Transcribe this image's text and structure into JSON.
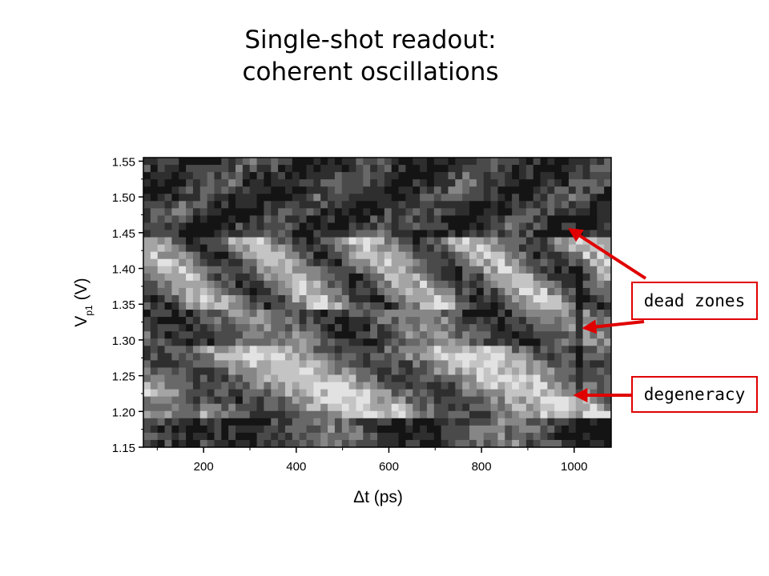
{
  "title": {
    "line1": "Single-shot readout:",
    "line2": "coherent oscillations"
  },
  "annotations": {
    "dead_zones": "dead zones",
    "degeneracy": "degeneracy",
    "arrow_color": "#e00000"
  },
  "chart_data": {
    "type": "heatmap",
    "title": "Single-shot readout: coherent oscillations",
    "xlabel": "Δt (ps)",
    "ylabel_main": "V",
    "ylabel_sub": "p1",
    "ylabel_unit": "(V)",
    "xlim": [
      70,
      1080
    ],
    "ylim": [
      1.15,
      1.555
    ],
    "x_ticks": [
      200,
      400,
      600,
      800,
      1000
    ],
    "y_ticks": [
      1.15,
      1.2,
      1.25,
      1.3,
      1.35,
      1.4,
      1.45,
      1.5,
      1.55
    ],
    "x_tick_labels": [
      "200",
      "400",
      "600",
      "800",
      "1000"
    ],
    "y_tick_labels": [
      "1.15",
      "1.20",
      "1.25",
      "1.30",
      "1.35",
      "1.40",
      "1.45",
      "1.50",
      "1.55"
    ],
    "colormap": "grayscale",
    "grid": false,
    "features": [
      {
        "name": "dead zones",
        "x": 985,
        "y": 1.457
      },
      {
        "name": "dead zones",
        "x": 1012,
        "y": 1.317
      },
      {
        "name": "degeneracy",
        "x": 1012,
        "y": 1.222
      }
    ]
  }
}
